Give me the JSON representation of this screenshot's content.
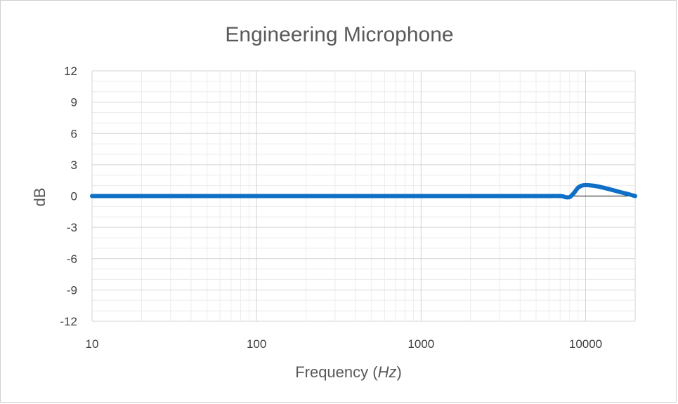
{
  "chart_data": {
    "type": "line",
    "title": "Engineering Microphone",
    "xlabel": "Frequency",
    "xlabel_unit": "Hz",
    "ylabel": "dB",
    "x_scale": "log",
    "xlim": [
      10,
      20000
    ],
    "ylim": [
      -12,
      12
    ],
    "x_ticks": [
      10,
      100,
      1000,
      10000
    ],
    "y_ticks": [
      12,
      9,
      6,
      3,
      0,
      -3,
      -6,
      -9,
      -12
    ],
    "grid": true,
    "legend": "none",
    "series": [
      {
        "color": "#0f6fc6",
        "x": [
          10,
          20,
          50,
          100,
          200,
          500,
          1000,
          2000,
          5000,
          7000,
          7500,
          8000,
          8500,
          9000,
          9500,
          10000,
          11000,
          12000,
          14000,
          16000,
          18000,
          20000
        ],
        "y": [
          0,
          0,
          0,
          0,
          0,
          0,
          0,
          0,
          0,
          0,
          -0.1,
          -0.1,
          0.3,
          0.8,
          1.0,
          1.05,
          1.0,
          0.9,
          0.65,
          0.4,
          0.2,
          0.0
        ]
      }
    ],
    "reference_line": {
      "y": 0,
      "color": "#000000"
    }
  }
}
